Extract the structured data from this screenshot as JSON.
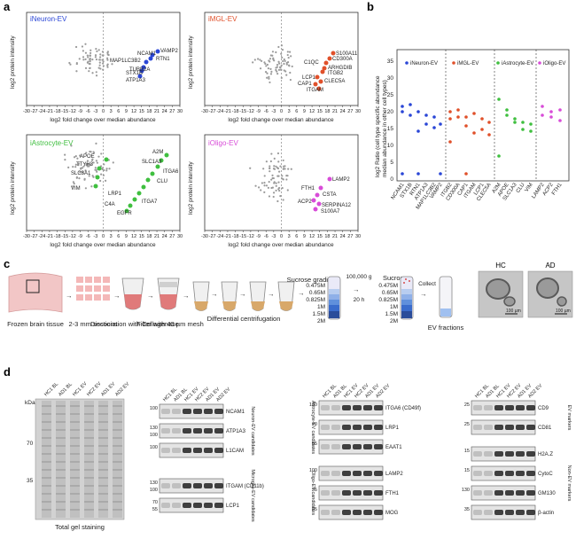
{
  "panel_letters": {
    "a": "a",
    "b": "b",
    "c": "c",
    "d": "d"
  },
  "colors": {
    "neuron": "#2a46d6",
    "microglia": "#e0502a",
    "astrocyte": "#3fbf3f",
    "oligo": "#d84cd8",
    "grey": "#9a9a9a"
  },
  "panel_a": {
    "xlabel": "log2 fold change over median abundance",
    "ylabel": "log2 protein intensity",
    "x_ticks": [
      "-30",
      "-27",
      "-24",
      "-21",
      "-18",
      "-15",
      "-12",
      "-9",
      "-6",
      "-3",
      "0",
      "3",
      "6",
      "9",
      "12",
      "15",
      "18",
      "21",
      "24",
      "27",
      "30"
    ],
    "plots": [
      {
        "title": "iNeuron-EV",
        "genes": [
          "NCAM1",
          "VAMP2",
          "MAP1LC3B2",
          "RTN1",
          "TUBB2A",
          "STX1B",
          "ATP1A3"
        ]
      },
      {
        "title": "iMGL-EV",
        "genes": [
          "S100A11",
          "CD300A",
          "C1QC",
          "ARHGDIB",
          "ITGB2",
          "LCP1",
          "CLEC5A",
          "CAP1",
          "ITGAM"
        ]
      },
      {
        "title": "iAstrocyte-EV",
        "genes": [
          "A2M",
          "APOE",
          "SLC1A3",
          "TTYH3",
          "ITGA6",
          "SLC3A1",
          "CLU",
          "VIM",
          "LRP1",
          "ITGA7",
          "C4A",
          "EGFR"
        ]
      },
      {
        "title": "iOligo-EV",
        "genes": [
          "LAMP2",
          "FTH1",
          "CSTA",
          "ACP2",
          "SERPINA12",
          "S100A7"
        ]
      }
    ]
  },
  "panel_b": {
    "ylabel_line1": "log2 Ratio (cell type specific abundance",
    "ylabel_line2": "median abundance in other cell types)",
    "legend": [
      "iNeuron-EV",
      "iMGL-EV",
      "iAstrocyte-EV",
      "iOligo-EV"
    ],
    "y_ticks": [
      "0",
      "5",
      "10",
      "15",
      "20",
      "25",
      "30",
      "35"
    ],
    "x_labels": [
      "NCAM1",
      "STX1B",
      "RTN1",
      "ATP1A3",
      "MAP1LC3B2",
      "VAMP2",
      "ITGB2",
      "CD300A",
      "CAP1",
      "ITGAM",
      "LCP1",
      "CLEC5A",
      "A2M",
      "APOE",
      "SLC1A3",
      "CLU",
      "VIM",
      "LAMP2",
      "ACP2",
      "FTH1"
    ]
  },
  "panel_c": {
    "steps": [
      "Frozen brain tissue",
      "2-3 mm sections",
      "Dissociation with Collagenase",
      "Filter with 40 µm mesh",
      "Differential centrifugation"
    ],
    "sucrose_label": "Sucrose gradient",
    "sucrose_steps_1": [
      "0.475M",
      "0.65M",
      "0.825M",
      "1M",
      "1.5M",
      "2M"
    ],
    "spin_label_1": "100,000 g",
    "spin_label_2": "20 h",
    "sucrose_label_2": "Sucrose",
    "sucrose_steps_2": [
      "0.475M",
      "0.65M",
      "0.825M",
      "1M",
      "1.5M",
      "2M"
    ],
    "collect_label": "Collect",
    "fraction_label": "EV fractions",
    "em_titles": [
      "HC",
      "AD"
    ],
    "scale_bar": "100 µm"
  },
  "panel_d": {
    "gel_kda_label": "kDa",
    "gel_markers": [
      "70",
      "35"
    ],
    "gel_caption": "Total gel staining",
    "lanes": [
      "HC1 BL",
      "AD1 BL",
      "HC1 EV",
      "HC2 EV",
      "AD1 EV",
      "AD2 EV"
    ],
    "group1": {
      "bands": [
        {
          "label": "NCAM1",
          "markers": [
            "100"
          ]
        },
        {
          "label": "ATP1A3",
          "markers": [
            "130",
            "100"
          ]
        },
        {
          "label": "L1CAM",
          "markers": [
            "100"
          ]
        },
        {
          "label": "ITGAM (CD11b)",
          "markers": [
            "130",
            "100"
          ]
        },
        {
          "label": "LCP1",
          "markers": [
            "70",
            "55"
          ]
        }
      ],
      "side_label_1": "Neuron-EV candidates",
      "side_label_2": "Microglia-EV candidates"
    },
    "group2": {
      "bands": [
        {
          "label": "ITGA6 (CD49f)",
          "markers": [
            "130"
          ]
        },
        {
          "label": "LRP1",
          "markers": [
            "70"
          ]
        },
        {
          "label": "EAAT1",
          "markers": [
            "55"
          ]
        },
        {
          "label": "LAMP2",
          "markers": [
            "100"
          ]
        },
        {
          "label": "FTH1",
          "markers": [
            "25"
          ]
        },
        {
          "label": "MOG",
          "markers": [
            "25"
          ]
        }
      ],
      "side_label_1": "Astrocyte-EV candidates",
      "side_label_2": "Oligo-EV candidates"
    },
    "group3": {
      "bands": [
        {
          "label": "CD9",
          "markers": [
            "25"
          ]
        },
        {
          "label": "CD81",
          "markers": [
            "25"
          ]
        },
        {
          "label": "H2A.Z",
          "markers": [
            "15"
          ]
        },
        {
          "label": "CytoC",
          "markers": [
            "15"
          ]
        },
        {
          "label": "GM130",
          "markers": [
            "130"
          ]
        },
        {
          "label": "β-actin",
          "markers": [
            "35"
          ]
        }
      ],
      "side_label_1": "EV markers",
      "side_label_2": "Non-EV markers"
    }
  }
}
